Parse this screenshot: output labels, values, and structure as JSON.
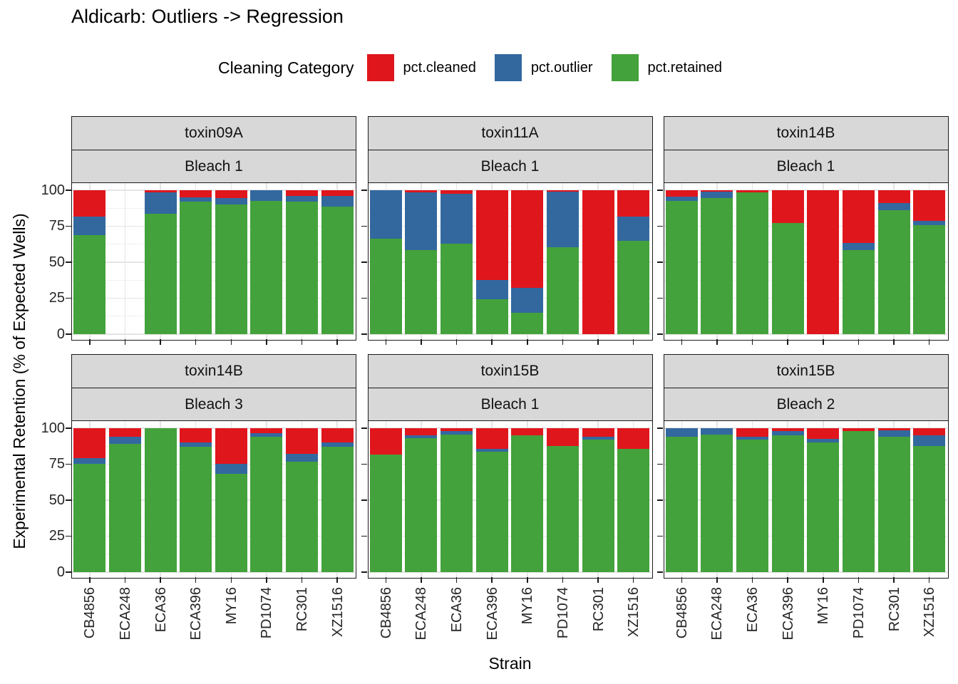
{
  "chart_data": {
    "type": "bar",
    "subtype": "stacked-percent-faceted",
    "title": "Aldicarb: Outliers -> Regression",
    "legend_title": "Cleaning Category",
    "xlabel": "Strain",
    "ylabel": "Experimental Retention (% of Expected Wells)",
    "ylim": [
      0,
      100
    ],
    "y_ticks": [
      0,
      25,
      50,
      75,
      100
    ],
    "y_minor": [
      12.5,
      37.5,
      62.5,
      87.5
    ],
    "grid": "on",
    "legend_position": "top",
    "series": [
      {
        "key": "cleaned",
        "label": "pct.cleaned",
        "color": "#E0161D"
      },
      {
        "key": "outlier",
        "label": "pct.outlier",
        "color": "#33689F"
      },
      {
        "key": "retained",
        "label": "pct.retained",
        "color": "#43A23B"
      }
    ],
    "stack_order_bottom_to_top": [
      "retained",
      "outlier",
      "cleaned"
    ],
    "strains": [
      "CB4856",
      "ECA248",
      "ECA36",
      "ECA396",
      "MY16",
      "PD1074",
      "RC301",
      "XZ1516"
    ],
    "style_colors": {
      "strip_fill": "#D8D8D8",
      "panel_border": "#1a1a1a",
      "grid_major": "#E4E4E4",
      "grid_minor": "#F0F0F0"
    },
    "facets": [
      {
        "toxin": "toxin09A",
        "bleach": "Bleach 1",
        "bars": [
          {
            "retained": 69,
            "outlier": 12.5,
            "cleaned": 18.5
          },
          null,
          {
            "retained": 83.5,
            "outlier": 15,
            "cleaned": 1.5
          },
          {
            "retained": 92,
            "outlier": 3,
            "cleaned": 5
          },
          {
            "retained": 90,
            "outlier": 4.5,
            "cleaned": 5.5
          },
          {
            "retained": 92.5,
            "outlier": 7.5,
            "cleaned": 0
          },
          {
            "retained": 92,
            "outlier": 4,
            "cleaned": 4
          },
          {
            "retained": 88.5,
            "outlier": 7.5,
            "cleaned": 4
          }
        ]
      },
      {
        "toxin": "toxin11A",
        "bleach": "Bleach 1",
        "bars": [
          {
            "retained": 66.5,
            "outlier": 33.5,
            "cleaned": 0
          },
          {
            "retained": 58.5,
            "outlier": 40,
            "cleaned": 1.5
          },
          {
            "retained": 63,
            "outlier": 34.5,
            "cleaned": 2.5
          },
          {
            "retained": 24,
            "outlier": 13.5,
            "cleaned": 62.5
          },
          {
            "retained": 15,
            "outlier": 17,
            "cleaned": 68
          },
          {
            "retained": 60.5,
            "outlier": 38.5,
            "cleaned": 1
          },
          {
            "retained": 0,
            "outlier": 0,
            "cleaned": 100
          },
          {
            "retained": 65,
            "outlier": 16.5,
            "cleaned": 18.5
          }
        ]
      },
      {
        "toxin": "toxin14B",
        "bleach": "Bleach 1",
        "bars": [
          {
            "retained": 92.5,
            "outlier": 3,
            "cleaned": 4.5
          },
          {
            "retained": 94.5,
            "outlier": 4.5,
            "cleaned": 1
          },
          {
            "retained": 98.5,
            "outlier": 0,
            "cleaned": 1.5
          },
          {
            "retained": 77,
            "outlier": 0,
            "cleaned": 23
          },
          {
            "retained": 0,
            "outlier": 0,
            "cleaned": 100
          },
          {
            "retained": 58.5,
            "outlier": 5,
            "cleaned": 36.5
          },
          {
            "retained": 86,
            "outlier": 5,
            "cleaned": 9
          },
          {
            "retained": 75.5,
            "outlier": 3,
            "cleaned": 21.5
          }
        ]
      },
      {
        "toxin": "toxin14B",
        "bleach": "Bleach 3",
        "bars": [
          {
            "retained": 75,
            "outlier": 4,
            "cleaned": 21
          },
          {
            "retained": 89,
            "outlier": 5,
            "cleaned": 6
          },
          {
            "retained": 100,
            "outlier": 0,
            "cleaned": 0
          },
          {
            "retained": 87,
            "outlier": 3,
            "cleaned": 10
          },
          {
            "retained": 68.5,
            "outlier": 6.5,
            "cleaned": 25
          },
          {
            "retained": 94,
            "outlier": 2.5,
            "cleaned": 3.5
          },
          {
            "retained": 76.5,
            "outlier": 5.5,
            "cleaned": 18
          },
          {
            "retained": 87,
            "outlier": 3,
            "cleaned": 10
          }
        ]
      },
      {
        "toxin": "toxin15B",
        "bleach": "Bleach 1",
        "bars": [
          {
            "retained": 81.5,
            "outlier": 0,
            "cleaned": 18.5
          },
          {
            "retained": 93,
            "outlier": 2,
            "cleaned": 5
          },
          {
            "retained": 95.5,
            "outlier": 2.5,
            "cleaned": 2
          },
          {
            "retained": 83.5,
            "outlier": 2,
            "cleaned": 14.5
          },
          {
            "retained": 95,
            "outlier": 0,
            "cleaned": 5
          },
          {
            "retained": 87.5,
            "outlier": 0,
            "cleaned": 12.5
          },
          {
            "retained": 92,
            "outlier": 2,
            "cleaned": 6
          },
          {
            "retained": 85.5,
            "outlier": 0,
            "cleaned": 14.5
          }
        ]
      },
      {
        "toxin": "toxin15B",
        "bleach": "Bleach 2",
        "bars": [
          {
            "retained": 94,
            "outlier": 6,
            "cleaned": 0
          },
          {
            "retained": 95.5,
            "outlier": 4.5,
            "cleaned": 0
          },
          {
            "retained": 92,
            "outlier": 2,
            "cleaned": 6
          },
          {
            "retained": 95,
            "outlier": 3,
            "cleaned": 2
          },
          {
            "retained": 90,
            "outlier": 2.5,
            "cleaned": 7.5
          },
          {
            "retained": 98,
            "outlier": 0,
            "cleaned": 2
          },
          {
            "retained": 94,
            "outlier": 4.5,
            "cleaned": 1.5
          },
          {
            "retained": 87.5,
            "outlier": 7.5,
            "cleaned": 5
          }
        ]
      }
    ]
  }
}
